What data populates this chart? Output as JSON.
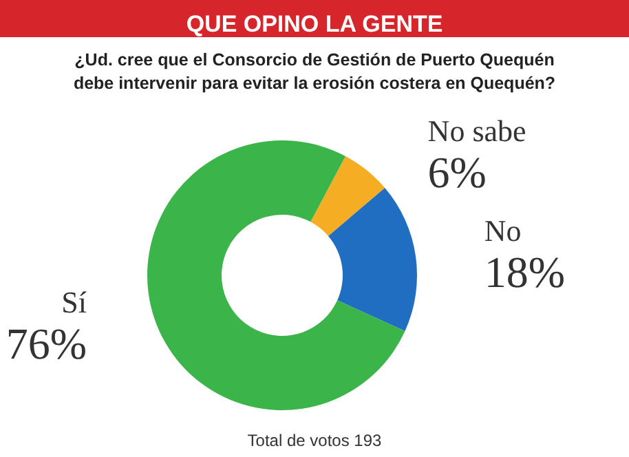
{
  "chart_data": {
    "type": "donut",
    "title": "QUE OPINO LA GENTE",
    "subtitle": "¿Ud. cree que el Consorcio de Gestión de Puerto Quequén\ndebe intervenir para evitar la erosión costera en Quequén?",
    "categories": [
      "No sabe",
      "No",
      "Sí"
    ],
    "values": [
      6,
      18,
      76
    ],
    "colors": [
      "#f5ae24",
      "#1f6ec2",
      "#3bb44a"
    ],
    "annotations": [
      "Total de votos 193"
    ],
    "value_labels": [
      "6%",
      "18%",
      "76%"
    ]
  }
}
